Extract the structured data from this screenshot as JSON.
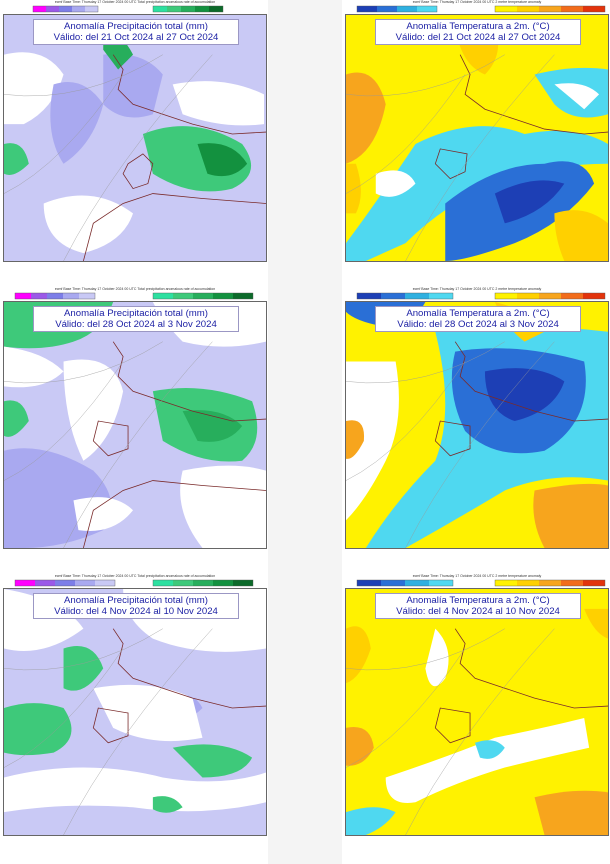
{
  "scales": {
    "precip_title": "ecmf Base Time: Thursday 17 October 2024 00 UTC Total precipitation anomalous rate of accumulation",
    "temp_title": "ecmf Base Time: Thursday 17 October 2024 00 UTC 2 metre temperature anomaly",
    "precip_neg_colors": [
      "#ff00ff",
      "#9b59e8",
      "#7d7ee8",
      "#a9a9f0",
      "#c9c9f5"
    ],
    "precip_pos_colors": [
      "#2de0a0",
      "#3ec97a",
      "#27ae5c",
      "#13913f",
      "#0c6a2a"
    ],
    "temp_cold_colors": [
      "#1d3fb5",
      "#2a6fd6",
      "#2fb0e0",
      "#4fd8f0"
    ],
    "temp_warm_colors": [
      "#fff200",
      "#ffd000",
      "#f7a51d",
      "#f26c1b",
      "#e2330c"
    ]
  },
  "panels": [
    {
      "title": "Anomalía Precipitación total (mm)",
      "valid": "Válido: del 21 Oct 2024 al 27 Oct 2024"
    },
    {
      "title": "Anomalía Temperatura a 2m. (°C)",
      "valid": "Válido: del 21 Oct 2024 al 27 Oct 2024"
    },
    {
      "title": "Anomalía Precipitación total (mm)",
      "valid": "Válido: del 28 Oct 2024 al 3 Nov 2024"
    },
    {
      "title": "Anomalía Temperatura a 2m. (°C)",
      "valid": "Válido: del 28 Oct 2024 al 3 Nov 2024"
    },
    {
      "title": "Anomalía Precipitación total (mm)",
      "valid": "Válido: del 4 Nov 2024 al 10 Nov 2024"
    },
    {
      "title": "Anomalía Temperatura a 2m. (°C)",
      "valid": "Válido: del 4 Nov 2024 al 10 Nov 2024"
    }
  ]
}
